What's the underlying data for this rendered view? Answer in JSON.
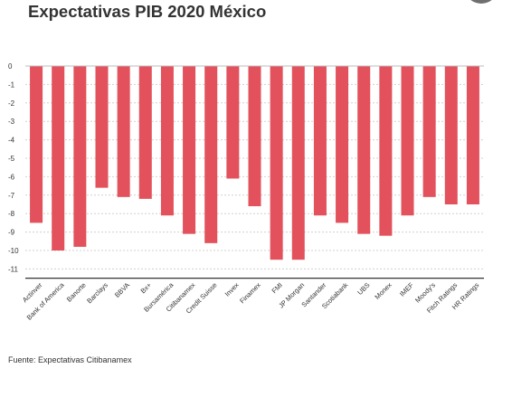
{
  "header": {
    "title": "Expectativas PIB 2020 México"
  },
  "footer": {
    "source": "Fuente: Expectativas Citibanamex"
  },
  "colors": {
    "bar": "#e2515c",
    "grid": "#d0d0d0",
    "axis": "#333333",
    "text": "#333333"
  },
  "chart_data": {
    "type": "bar",
    "title": "Expectativas PIB 2020 México",
    "xlabel": "",
    "ylabel": "",
    "categories": [
      "Actinver",
      "Bank of America",
      "Banorte",
      "Barclays",
      "BBVA",
      "Bx+",
      "Bursamérica",
      "Citibanamex",
      "Credit Suisse",
      "Invex",
      "Finamex",
      "FMI",
      "JP Morgan",
      "Santander",
      "Scotiabank",
      "UBS",
      "Monex",
      "IMEF",
      "Moody's",
      "Fitch Ratings",
      "HR Ratings"
    ],
    "values": [
      -8.5,
      -10,
      -9.8,
      -6.6,
      -7.1,
      -7.2,
      -8.1,
      -9.1,
      -9.6,
      -6.1,
      -7.6,
      -10.5,
      -10.5,
      -8.1,
      -8.5,
      -9.1,
      -9.2,
      -8.1,
      -7.1,
      -7.5,
      -7.5
    ],
    "ylim": [
      -11.5,
      0
    ],
    "yticks": [
      0,
      -1,
      -2,
      -3,
      -4,
      -5,
      -6,
      -7,
      -8,
      -9,
      -10,
      -11
    ],
    "grid": true,
    "legend": "none"
  }
}
